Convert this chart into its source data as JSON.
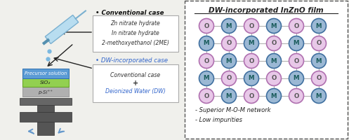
{
  "bg_color": "#f0f0ec",
  "title_right": "DW-incorporated InZnO film",
  "bullet1_label": "• Conventional case",
  "box1_lines": [
    "Zn nitrate hydrate",
    "In nitrate hydrate",
    "2-methoxyethanol (2ME)"
  ],
  "bullet2_label": "• DW-incorporated case",
  "box2_lines": [
    "Conventional case",
    "+",
    "Deionized Water (DW)"
  ],
  "bottom_notes": [
    "- Superior M-O-M network",
    "- Low impurities"
  ],
  "layer1_label": "Precursor solution",
  "layer1_color": "#5b9bd5",
  "layer2_label": "SiO₂",
  "layer2_color": "#92d050",
  "layer3_label": "p-Si⁺⁺",
  "layer3_color": "#b0b0b0",
  "o_color": "#e8c8e8",
  "m_color": "#9bb8d4",
  "o_edge": "#b070b0",
  "m_edge": "#4070a0",
  "o_text": "#555555",
  "m_text": "#1a5c5c",
  "grid_pattern": [
    [
      "O",
      "M",
      "O",
      "M",
      "O",
      "M"
    ],
    [
      "M",
      "O",
      "M",
      "O",
      "M",
      "O"
    ],
    [
      "O",
      "M",
      "O",
      "M",
      "O",
      "M"
    ],
    [
      "M",
      "O",
      "M",
      "O",
      "M",
      "O"
    ],
    [
      "O",
      "M",
      "O",
      "M",
      "O",
      "M"
    ]
  ]
}
